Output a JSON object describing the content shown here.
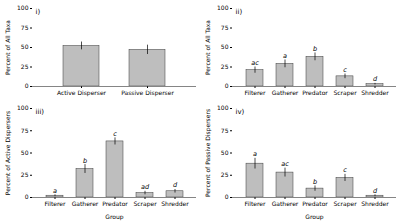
{
  "chart_data": [
    {
      "type": "bar",
      "title": "i)",
      "categories": [
        "Active Disperser",
        "Passive Disperser"
      ],
      "values": [
        52,
        47
      ],
      "errors": [
        5,
        6
      ],
      "ylabel": "Percent of All Taxa",
      "ylim": [
        0,
        100
      ],
      "yticks": [
        0,
        25,
        50,
        75,
        100
      ],
      "color": "#bebebe"
    },
    {
      "type": "bar",
      "title": "ii)",
      "categories": [
        "Filterer",
        "Gatherer",
        "Predator",
        "Scraper",
        "Shredder"
      ],
      "values": [
        21,
        29,
        38,
        13,
        3
      ],
      "errors": [
        4,
        5,
        5,
        3,
        1
      ],
      "letters": [
        "ac",
        "a",
        "b",
        "c",
        "d"
      ],
      "ylabel": "Percent of All Taxa",
      "ylim": [
        0,
        100
      ],
      "yticks": [
        0,
        25,
        50,
        75,
        100
      ],
      "color": "#bebebe"
    },
    {
      "type": "bar",
      "title": "iii)",
      "categories": [
        "Filterer",
        "Gatherer",
        "Predator",
        "Scraper",
        "Shredder"
      ],
      "values": [
        2,
        32,
        63,
        5,
        7
      ],
      "errors": [
        1,
        5,
        4,
        2,
        2
      ],
      "letters": [
        "a",
        "b",
        "c",
        "ad",
        "d"
      ],
      "ylabel": "Percent of Active Dispersers",
      "xlabel": "Group",
      "ylim": [
        0,
        100
      ],
      "yticks": [
        0,
        25,
        50,
        75,
        100
      ],
      "color": "#bebebe"
    },
    {
      "type": "bar",
      "title": "iv)",
      "categories": [
        "Filterer",
        "Gatherer",
        "Predator",
        "Scraper",
        "Shredder"
      ],
      "values": [
        38,
        28,
        10,
        22,
        2
      ],
      "errors": [
        6,
        5,
        3,
        4,
        1
      ],
      "letters": [
        "a",
        "ac",
        "b",
        "c",
        "d"
      ],
      "ylabel": "Percent of Passive Dispersers",
      "xlabel": "Group",
      "ylim": [
        0,
        100
      ],
      "yticks": [
        0,
        25,
        50,
        75,
        100
      ],
      "color": "#bebebe"
    }
  ]
}
